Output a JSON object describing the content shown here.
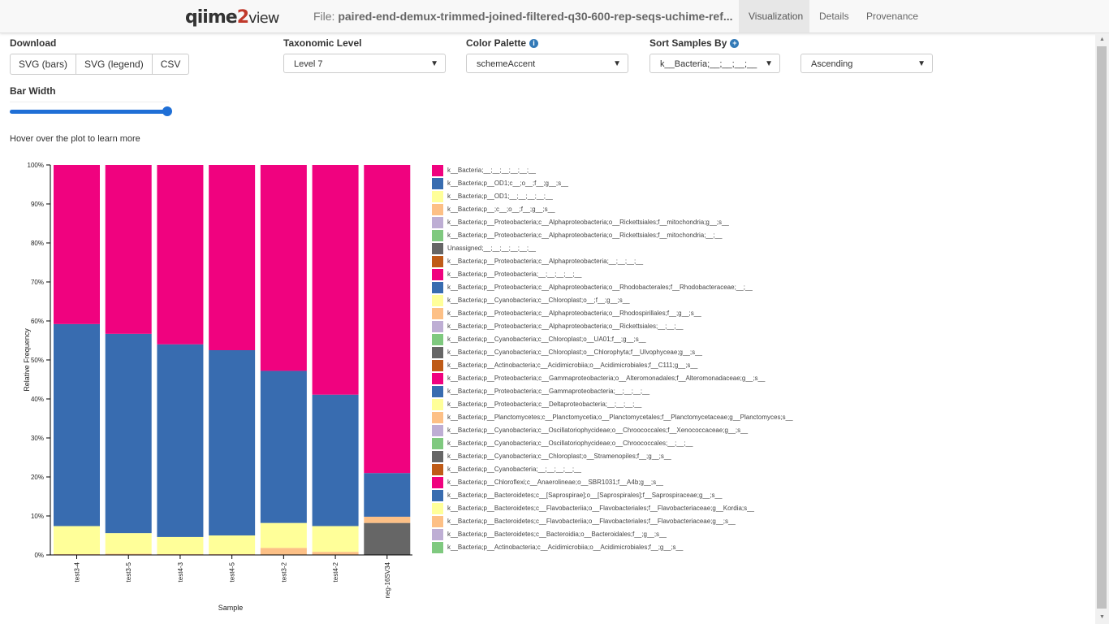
{
  "header": {
    "logo_text_q": "qiime",
    "logo_text_2": "2",
    "logo_text_view": "view",
    "file_label": "File:",
    "file_name": "paired-end-demux-trimmed-joined-filtered-q30-600-rep-seqs-uchime-ref...",
    "tabs": [
      {
        "label": "Visualization",
        "active": true
      },
      {
        "label": "Details",
        "active": false
      },
      {
        "label": "Provenance",
        "active": false
      }
    ]
  },
  "controls": {
    "download_label": "Download",
    "download_buttons": [
      "SVG (bars)",
      "SVG (legend)",
      "CSV"
    ],
    "taxonomic_level_label": "Taxonomic Level",
    "taxonomic_level_value": "Level 7",
    "color_palette_label": "Color Palette",
    "color_palette_value": "schemeAccent",
    "sort_samples_label": "Sort Samples By",
    "sort_value_1": "k__Bacteria;__;__;__;__",
    "sort_value_2": "Ascending",
    "bar_width_label": "Bar Width",
    "bar_width_level": 1.0,
    "hover_hint": "Hover over the plot to learn more"
  },
  "icons": {
    "info": "info-icon",
    "plus": "plus-circle-icon",
    "chevron": "chevron-down-icon"
  },
  "chart_data": {
    "type": "bar",
    "stacked": true,
    "xlabel": "Sample",
    "ylabel": "Relative Frequency",
    "ylim": [
      0,
      100
    ],
    "yticks": [
      "0%",
      "10%",
      "20%",
      "30%",
      "40%",
      "50%",
      "60%",
      "70%",
      "80%",
      "90%",
      "100%"
    ],
    "categories": [
      "test3-4",
      "test3-5",
      "test4-3",
      "test4-5",
      "test3-2",
      "test4-2",
      "neg-16SV34"
    ],
    "series": [
      {
        "name": "Unassigned;__;__;__;__;__;__",
        "color": "#666666",
        "values": [
          0,
          0,
          0,
          0,
          0,
          0,
          8.2
        ]
      },
      {
        "name": "k__Bacteria;p__;c__;o__;f__;g__;s__",
        "color": "#fdc086",
        "values": [
          0.2,
          0.3,
          0.2,
          0.2,
          1.8,
          0.8,
          1.6
        ]
      },
      {
        "name": "k__Bacteria;p__OD1;__;__;__;__;__",
        "color": "#ffff99",
        "values": [
          7.2,
          5.3,
          4.4,
          4.8,
          6.4,
          6.6,
          0
        ]
      },
      {
        "name": "k__Bacteria;p__OD1;c__;o__;f__;g__;s__",
        "color": "#386cb0",
        "values": [
          51.8,
          51.1,
          49.4,
          47.5,
          39.0,
          33.7,
          11.2
        ]
      },
      {
        "name": "k__Bacteria;__;__;__;__;__;__",
        "color": "#f0027f",
        "values": [
          40.8,
          43.3,
          46.0,
          47.5,
          52.8,
          58.9,
          79.0
        ]
      }
    ]
  },
  "legend": {
    "items": [
      {
        "label": "k__Bacteria;__;__;__;__;__;__",
        "color": "#f0027f"
      },
      {
        "label": "k__Bacteria;p__OD1;c__;o__;f__;g__;s__",
        "color": "#386cb0"
      },
      {
        "label": "k__Bacteria;p__OD1;__;__;__;__;__",
        "color": "#ffff99"
      },
      {
        "label": "k__Bacteria;p__;c__;o__;f__;g__;s__",
        "color": "#fdc086"
      },
      {
        "label": "k__Bacteria;p__Proteobacteria;c__Alphaproteobacteria;o__Rickettsiales;f__mitochondria;g__;s__",
        "color": "#beaed4"
      },
      {
        "label": "k__Bacteria;p__Proteobacteria;c__Alphaproteobacteria;o__Rickettsiales;f__mitochondria;__;__",
        "color": "#7fc97f"
      },
      {
        "label": "Unassigned;__;__;__;__;__;__",
        "color": "#666666"
      },
      {
        "label": "k__Bacteria;p__Proteobacteria;c__Alphaproteobacteria;__;__;__;__",
        "color": "#bf5b17"
      },
      {
        "label": "k__Bacteria;p__Proteobacteria;__;__;__;__;__",
        "color": "#f0027f"
      },
      {
        "label": "k__Bacteria;p__Proteobacteria;c__Alphaproteobacteria;o__Rhodobacterales;f__Rhodobacteraceae;__;__",
        "color": "#386cb0"
      },
      {
        "label": "k__Bacteria;p__Cyanobacteria;c__Chloroplast;o__;f__;g__;s__",
        "color": "#ffff99"
      },
      {
        "label": "k__Bacteria;p__Proteobacteria;c__Alphaproteobacteria;o__Rhodospirillales;f__;g__;s__",
        "color": "#fdc086"
      },
      {
        "label": "k__Bacteria;p__Proteobacteria;c__Alphaproteobacteria;o__Rickettsiales;__;__;__",
        "color": "#beaed4"
      },
      {
        "label": "k__Bacteria;p__Cyanobacteria;c__Chloroplast;o__UA01;f__;g__;s__",
        "color": "#7fc97f"
      },
      {
        "label": "k__Bacteria;p__Cyanobacteria;c__Chloroplast;o__Chlorophyta;f__Ulvophyceae;g__;s__",
        "color": "#666666"
      },
      {
        "label": "k__Bacteria;p__Actinobacteria;c__Acidimicrobiia;o__Acidimicrobiales;f__C111;g__;s__",
        "color": "#bf5b17"
      },
      {
        "label": "k__Bacteria;p__Proteobacteria;c__Gammaproteobacteria;o__Alteromonadales;f__Alteromonadaceae;g__;s__",
        "color": "#f0027f"
      },
      {
        "label": "k__Bacteria;p__Proteobacteria;c__Gammaproteobacteria;__;__;__;__",
        "color": "#386cb0"
      },
      {
        "label": "k__Bacteria;p__Proteobacteria;c__Deltaproteobacteria;__;__;__;__",
        "color": "#ffff99"
      },
      {
        "label": "k__Bacteria;p__Planctomycetes;c__Planctomycetia;o__Planctomycetales;f__Planctomycetaceae;g__Planctomyces;s__",
        "color": "#fdc086"
      },
      {
        "label": "k__Bacteria;p__Cyanobacteria;c__Oscillatoriophycideae;o__Chroococcales;f__Xenococcaceae;g__;s__",
        "color": "#beaed4"
      },
      {
        "label": "k__Bacteria;p__Cyanobacteria;c__Oscillatoriophycideae;o__Chroococcales;__;__;__",
        "color": "#7fc97f"
      },
      {
        "label": "k__Bacteria;p__Cyanobacteria;c__Chloroplast;o__Stramenopiles;f__;g__;s__",
        "color": "#666666"
      },
      {
        "label": "k__Bacteria;p__Cyanobacteria;__;__;__;__;__",
        "color": "#bf5b17"
      },
      {
        "label": "k__Bacteria;p__Chloroflexi;c__Anaerolineae;o__SBR1031;f__A4b;g__;s__",
        "color": "#f0027f"
      },
      {
        "label": "k__Bacteria;p__Bacteroidetes;c__[Saprospirae];o__[Saprospirales];f__Saprospiraceae;g__;s__",
        "color": "#386cb0"
      },
      {
        "label": "k__Bacteria;p__Bacteroidetes;c__Flavobacteriia;o__Flavobacteriales;f__Flavobacteriaceae;g__Kordia;s__",
        "color": "#ffff99"
      },
      {
        "label": "k__Bacteria;p__Bacteroidetes;c__Flavobacteriia;o__Flavobacteriales;f__Flavobacteriaceae;g__;s__",
        "color": "#fdc086"
      },
      {
        "label": "k__Bacteria;p__Bacteroidetes;c__Bacteroidia;o__Bacteroidales;f__;g__;s__",
        "color": "#beaed4"
      },
      {
        "label": "k__Bacteria;p__Actinobacteria;c__Acidimicrobiia;o__Acidimicrobiales;f__;g__;s__",
        "color": "#7fc97f"
      }
    ]
  }
}
